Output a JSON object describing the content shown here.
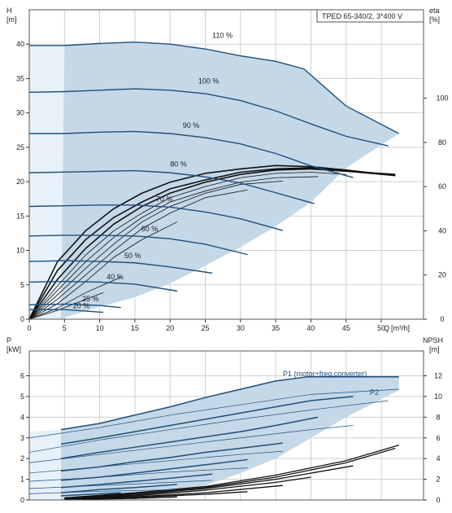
{
  "chart_data": [
    {
      "type": "line",
      "title": "TPED 65-340/2, 3*400 V",
      "left_axis": {
        "label": "H",
        "unit": "[m]",
        "range": [
          0,
          45
        ],
        "ticks": [
          "0",
          "5",
          "10",
          "15",
          "20",
          "25",
          "30",
          "35",
          "40"
        ]
      },
      "right_axis": {
        "label": "eta",
        "unit": "[%]",
        "range": [
          0,
          140
        ],
        "ticks": [
          "0",
          "20",
          "40",
          "60",
          "80",
          "100"
        ]
      },
      "x_axis": {
        "label": "Q",
        "unit": "[m³/h]",
        "range": [
          0,
          56
        ],
        "ticks": [
          "0",
          "5",
          "10",
          "15",
          "20",
          "25",
          "30",
          "35",
          "40",
          "45",
          "50"
        ]
      },
      "grid": true,
      "colors": {
        "curve": "#1f4e7a",
        "region": "#c5d8e8",
        "region_light": "#e6f1fa",
        "eff": "#111111"
      },
      "series": [
        {
          "name": "110 %",
          "x": [
            0,
            5,
            10,
            15,
            20,
            25,
            30,
            35,
            39,
            45,
            52.5
          ],
          "y": [
            39.8,
            39.8,
            40.1,
            40.3,
            40.0,
            39.3,
            38.3,
            37.5,
            36.4,
            31,
            27
          ]
        },
        {
          "name": "100 %",
          "x": [
            0,
            5,
            10,
            15,
            20,
            25,
            30,
            35,
            40,
            45,
            51
          ],
          "y": [
            33,
            33.1,
            33.3,
            33.5,
            33.3,
            32.8,
            31.8,
            30.3,
            28.4,
            26.6,
            25.2
          ]
        },
        {
          "name": "90 %",
          "x": [
            0,
            5,
            10,
            15,
            20,
            25,
            30,
            35,
            40,
            46
          ],
          "y": [
            27,
            27,
            27.2,
            27.3,
            27,
            26.4,
            25.5,
            24.1,
            22.3,
            20.6
          ]
        },
        {
          "name": "80 %",
          "x": [
            0,
            5,
            10,
            15,
            20,
            25,
            30,
            35,
            40.5
          ],
          "y": [
            21.3,
            21.4,
            21.5,
            21.6,
            21.3,
            20.7,
            19.8,
            18.4,
            16.8
          ]
        },
        {
          "name": "70 %",
          "x": [
            0,
            5,
            10,
            15,
            20,
            25,
            30,
            36
          ],
          "y": [
            16.4,
            16.5,
            16.6,
            16.6,
            16.3,
            15.6,
            14.6,
            12.9
          ]
        },
        {
          "name": "60 %",
          "x": [
            0,
            5,
            10,
            15,
            20,
            25,
            31
          ],
          "y": [
            12.1,
            12.2,
            12.2,
            12.1,
            11.7,
            10.9,
            9.4
          ]
        },
        {
          "name": "50 %",
          "x": [
            0,
            5,
            10,
            15,
            20,
            26
          ],
          "y": [
            8.4,
            8.5,
            8.4,
            8.2,
            7.6,
            6.7
          ]
        },
        {
          "name": "40 %",
          "x": [
            0,
            5,
            10,
            15,
            21
          ],
          "y": [
            5.4,
            5.5,
            5.4,
            5.1,
            4.1
          ]
        },
        {
          "name": "25 %",
          "x": [
            0,
            5,
            10,
            13
          ],
          "y": [
            2.1,
            2.2,
            2.0,
            1.7
          ]
        },
        {
          "name": "20 %",
          "x": [
            0,
            5,
            10.5
          ],
          "y": [
            1.4,
            1.4,
            1.0
          ]
        }
      ],
      "labels": [
        {
          "text": "110 %",
          "x": 26,
          "y": 40.9
        },
        {
          "text": "100 %",
          "x": 24,
          "y": 34.3
        },
        {
          "text": "90 %",
          "x": 21.8,
          "y": 27.8
        },
        {
          "text": "80 %",
          "x": 20,
          "y": 22.2
        },
        {
          "text": "70 %",
          "x": 18,
          "y": 17.1
        },
        {
          "text": "60 %",
          "x": 15.9,
          "y": 12.8
        },
        {
          "text": "50 %",
          "x": 13.5,
          "y": 8.9
        },
        {
          "text": "40 %",
          "x": 11,
          "y": 5.8
        },
        {
          "text": "25 %",
          "x": 7.5,
          "y": 2.6
        },
        {
          "text": "20 %",
          "x": 6.2,
          "y": 1.6
        }
      ],
      "efficiency": [
        {
          "x": [
            0,
            4,
            8,
            12,
            16,
            20,
            25,
            30,
            35,
            40,
            45,
            52
          ],
          "y": [
            0,
            26,
            40,
            50,
            57,
            62,
            66,
            68,
            69.5,
            69,
            67.5,
            65
          ]
        },
        {
          "x": [
            0,
            4,
            8,
            12,
            16,
            20,
            25,
            30,
            35,
            40,
            45,
            52
          ],
          "y": [
            0,
            22,
            36,
            46,
            53,
            59,
            63,
            66.5,
            68,
            68.5,
            67,
            65
          ]
        },
        {
          "x": [
            0,
            4,
            8,
            12,
            16,
            20,
            25,
            30,
            35,
            40,
            45,
            52
          ],
          "y": [
            0,
            18,
            32,
            43,
            51,
            57,
            62,
            65.5,
            67.5,
            68,
            67,
            65.5
          ]
        },
        {
          "x": [
            0,
            4,
            8,
            12,
            16,
            20,
            25,
            30,
            35,
            40,
            45
          ],
          "y": [
            0,
            15,
            29,
            40,
            48,
            55,
            60,
            64,
            66,
            66.5,
            65.5
          ]
        },
        {
          "x": [
            0,
            4,
            8,
            12,
            16,
            20,
            25,
            30,
            35,
            41
          ],
          "y": [
            0,
            13,
            26,
            37,
            46,
            53,
            58,
            62,
            64,
            64.5
          ]
        },
        {
          "x": [
            0,
            4,
            8,
            12,
            16,
            20,
            25,
            30,
            36
          ],
          "y": [
            0,
            11,
            23,
            34,
            44,
            51,
            57,
            61,
            62.5
          ]
        },
        {
          "x": [
            0,
            4,
            8,
            12,
            16,
            20,
            25,
            31
          ],
          "y": [
            0,
            9,
            20,
            31,
            41,
            48,
            55,
            58.5
          ]
        },
        {
          "x": [
            0,
            4,
            8,
            12,
            16,
            21
          ],
          "y": [
            0,
            7,
            17,
            28,
            36,
            44
          ]
        },
        {
          "x": [
            0,
            4,
            8,
            13
          ],
          "y": [
            0,
            5,
            12,
            19
          ]
        },
        {
          "x": [
            0,
            4,
            8,
            10.5
          ],
          "y": [
            0,
            4,
            9,
            12
          ]
        }
      ]
    },
    {
      "type": "line",
      "left_axis": {
        "label": "P",
        "unit": "[kW]",
        "range": [
          0,
          7.2
        ],
        "ticks": [
          "0",
          "1",
          "2",
          "3",
          "4",
          "5",
          "6"
        ]
      },
      "right_axis": {
        "label": "NPSH",
        "unit": "[m]",
        "range": [
          0,
          14.4
        ],
        "ticks": [
          "0",
          "2",
          "4",
          "6",
          "8",
          "10",
          "12"
        ]
      },
      "x_axis": {
        "range": [
          0,
          56
        ]
      },
      "grid": true,
      "annotations": [
        "P1 (motor+freq.converter)",
        "P2"
      ],
      "power_p1": [
        {
          "x": [
            4.5,
            10,
            15,
            20,
            25,
            30,
            35,
            39.5,
            52.5
          ],
          "y": [
            3.4,
            3.7,
            4.1,
            4.5,
            4.95,
            5.35,
            5.75,
            5.95,
            5.95
          ]
        },
        {
          "x": [
            4.5,
            10,
            15,
            20,
            25,
            30,
            35,
            40,
            46
          ],
          "y": [
            2.7,
            3.0,
            3.3,
            3.6,
            3.9,
            4.2,
            4.5,
            4.8,
            5.0
          ]
        },
        {
          "x": [
            4.5,
            10,
            15,
            20,
            25,
            30,
            35,
            41
          ],
          "y": [
            2.0,
            2.3,
            2.55,
            2.8,
            3.05,
            3.3,
            3.6,
            4.0
          ]
        },
        {
          "x": [
            4.5,
            10,
            15,
            20,
            25,
            30,
            36
          ],
          "y": [
            1.4,
            1.6,
            1.85,
            2.05,
            2.3,
            2.5,
            2.75
          ]
        },
        {
          "x": [
            4.5,
            10,
            15,
            20,
            25,
            31
          ],
          "y": [
            0.95,
            1.1,
            1.3,
            1.5,
            1.7,
            1.95
          ]
        },
        {
          "x": [
            4.5,
            10,
            15,
            20,
            26
          ],
          "y": [
            0.6,
            0.75,
            0.9,
            1.05,
            1.25
          ]
        },
        {
          "x": [
            4.5,
            10,
            15,
            21
          ],
          "y": [
            0.35,
            0.5,
            0.6,
            0.75
          ]
        },
        {
          "x": [
            4.5,
            10,
            13
          ],
          "y": [
            0.2,
            0.3,
            0.35
          ]
        }
      ],
      "power_p2": [
        {
          "x": [
            0,
            10,
            20,
            30,
            40,
            52.5
          ],
          "y": [
            3.0,
            3.5,
            4.1,
            4.6,
            5.1,
            5.35
          ]
        },
        {
          "x": [
            0,
            10,
            20,
            30,
            40,
            51
          ],
          "y": [
            2.3,
            2.9,
            3.4,
            3.9,
            4.35,
            4.8
          ]
        },
        {
          "x": [
            0,
            10,
            20,
            30,
            40,
            46
          ],
          "y": [
            1.8,
            2.2,
            2.6,
            3.0,
            3.4,
            3.6
          ]
        },
        {
          "x": [
            0,
            10,
            20,
            30,
            36
          ],
          "y": [
            1.3,
            1.6,
            1.9,
            2.2,
            2.35
          ]
        },
        {
          "x": [
            0,
            10,
            20,
            31
          ],
          "y": [
            0.9,
            1.1,
            1.35,
            1.55
          ]
        },
        {
          "x": [
            0,
            10,
            20,
            26
          ],
          "y": [
            0.55,
            0.7,
            0.85,
            0.95
          ]
        },
        {
          "x": [
            0,
            10,
            21
          ],
          "y": [
            0.3,
            0.42,
            0.5
          ]
        }
      ],
      "npsh": [
        {
          "x": [
            5,
            15,
            25,
            35,
            45,
            52.5
          ],
          "y": [
            0.2,
            0.7,
            1.3,
            2.4,
            3.8,
            5.3
          ]
        },
        {
          "x": [
            5,
            15,
            25,
            35,
            45,
            52
          ],
          "y": [
            0.15,
            0.6,
            1.2,
            2.2,
            3.6,
            5.0
          ]
        },
        {
          "x": [
            5,
            15,
            25,
            35,
            46
          ],
          "y": [
            0.12,
            0.5,
            1.1,
            2.0,
            3.3
          ]
        },
        {
          "x": [
            5,
            15,
            25,
            35,
            40
          ],
          "y": [
            0.1,
            0.4,
            0.95,
            1.7,
            2.2
          ]
        },
        {
          "x": [
            5,
            15,
            25,
            36
          ],
          "y": [
            0.08,
            0.3,
            0.7,
            1.4
          ]
        },
        {
          "x": [
            5,
            15,
            25,
            31
          ],
          "y": [
            0.05,
            0.25,
            0.55,
            0.8
          ]
        },
        {
          "x": [
            5,
            15,
            21
          ],
          "y": [
            0.04,
            0.15,
            0.3
          ]
        }
      ]
    }
  ]
}
